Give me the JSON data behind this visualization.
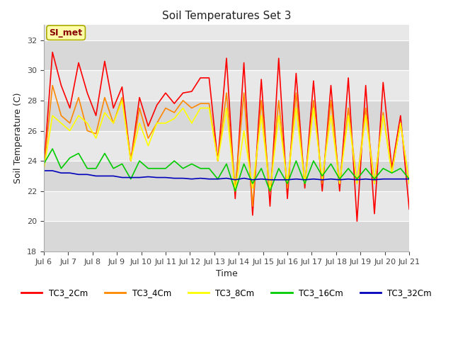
{
  "title": "Soil Temperatures Set 3",
  "xlabel": "Time",
  "ylabel": "Soil Temperature (C)",
  "ylim": [
    18,
    33
  ],
  "yticks": [
    18,
    20,
    22,
    24,
    26,
    28,
    30,
    32
  ],
  "fig_bg_color": "#ffffff",
  "plot_bg_color": "#e8e8e8",
  "annotation_text": "SI_met",
  "annotation_bg": "#ffffaa",
  "annotation_border": "#aaaa00",
  "annotation_text_color": "#880000",
  "series_colors": {
    "TC3_2Cm": "#ff0000",
    "TC3_4Cm": "#ff8800",
    "TC3_8Cm": "#ffff00",
    "TC3_16Cm": "#00cc00",
    "TC3_32Cm": "#0000bb"
  },
  "xticklabels": [
    "Jul 6",
    "Jul 7",
    "Jul 8",
    "Jul 9",
    "Jul 10",
    "Jul 11",
    "Jul 12",
    "Jul 13",
    "Jul 14",
    "Jul 15",
    "Jul 16",
    "Jul 17",
    "Jul 18",
    "Jul 19",
    "Jul 20",
    "Jul 21"
  ],
  "tc3_2cm": [
    23.5,
    31.2,
    29.0,
    27.5,
    30.5,
    28.5,
    27.0,
    30.6,
    27.5,
    28.9,
    24.0,
    28.2,
    26.3,
    27.7,
    28.5,
    27.8,
    28.5,
    28.6,
    29.5,
    29.5,
    24.0,
    30.8,
    21.5,
    30.5,
    20.4,
    29.4,
    21.0,
    30.8,
    21.5,
    29.8,
    22.2,
    29.3,
    22.0,
    29.0,
    22.0,
    29.5,
    20.0,
    29.0,
    20.5,
    29.2,
    23.5,
    27.0,
    20.8
  ],
  "tc3_4cm": [
    23.4,
    29.0,
    27.0,
    26.5,
    28.2,
    26.0,
    25.8,
    28.2,
    26.5,
    28.2,
    24.0,
    27.5,
    25.5,
    26.5,
    27.5,
    27.2,
    28.0,
    27.5,
    27.8,
    27.8,
    24.0,
    28.5,
    22.2,
    28.5,
    21.0,
    28.0,
    22.0,
    28.0,
    22.2,
    28.5,
    22.5,
    28.0,
    22.5,
    28.0,
    22.5,
    27.5,
    22.5,
    27.5,
    22.5,
    27.2,
    23.2,
    26.5,
    22.5
  ],
  "tc3_8cm": [
    23.4,
    27.0,
    26.5,
    26.0,
    27.0,
    26.5,
    25.5,
    27.2,
    26.5,
    28.0,
    24.0,
    26.5,
    25.0,
    26.5,
    26.5,
    26.8,
    27.5,
    26.5,
    27.5,
    27.5,
    24.0,
    27.5,
    22.0,
    26.0,
    22.2,
    27.0,
    22.0,
    27.0,
    22.5,
    27.5,
    22.5,
    27.5,
    22.8,
    27.0,
    22.5,
    27.0,
    22.5,
    27.0,
    22.5,
    27.0,
    23.2,
    26.5,
    22.5
  ],
  "tc3_16cm": [
    23.8,
    24.8,
    23.5,
    24.2,
    24.5,
    23.5,
    23.5,
    24.5,
    23.5,
    23.8,
    22.8,
    24.0,
    23.5,
    23.5,
    23.5,
    24.0,
    23.5,
    23.8,
    23.5,
    23.5,
    22.8,
    23.8,
    22.0,
    23.8,
    22.5,
    23.5,
    22.0,
    23.5,
    22.5,
    24.0,
    22.5,
    24.0,
    23.0,
    23.8,
    22.8,
    23.5,
    22.8,
    23.5,
    22.8,
    23.5,
    23.2,
    23.5,
    22.8
  ],
  "tc3_32cm": [
    23.35,
    23.35,
    23.2,
    23.2,
    23.1,
    23.1,
    23.0,
    23.0,
    23.0,
    22.9,
    22.9,
    22.9,
    22.95,
    22.9,
    22.9,
    22.85,
    22.85,
    22.8,
    22.85,
    22.8,
    22.8,
    22.85,
    22.75,
    22.85,
    22.75,
    22.8,
    22.75,
    22.75,
    22.75,
    22.8,
    22.75,
    22.8,
    22.75,
    22.8,
    22.75,
    22.8,
    22.75,
    22.8,
    22.75,
    22.8,
    22.8,
    22.8,
    22.8
  ]
}
